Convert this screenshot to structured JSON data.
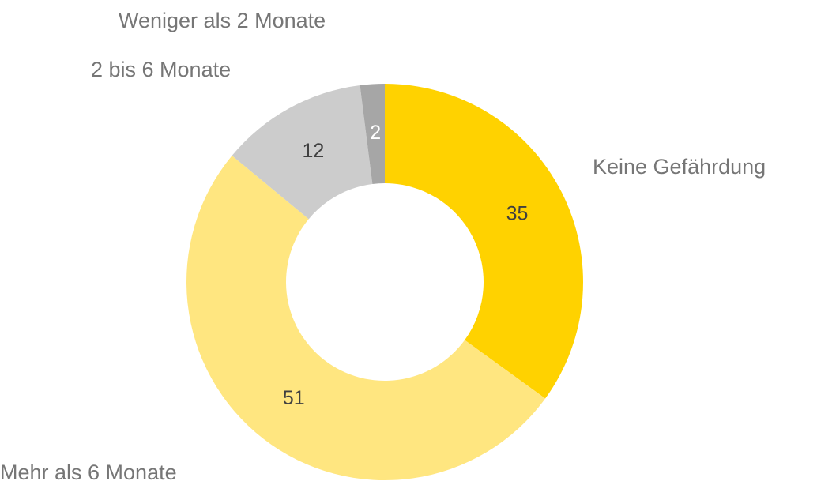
{
  "chart_data": {
    "type": "donut",
    "categories": [
      "Keine Gefährdung",
      "Mehr als 6 Monate",
      "2 bis 6 Monate",
      "Weniger als 2 Monate"
    ],
    "values": [
      35,
      51,
      12,
      2
    ],
    "colors": [
      "#ffd200",
      "#ffe680",
      "#cccccc",
      "#a6a6a6"
    ]
  }
}
